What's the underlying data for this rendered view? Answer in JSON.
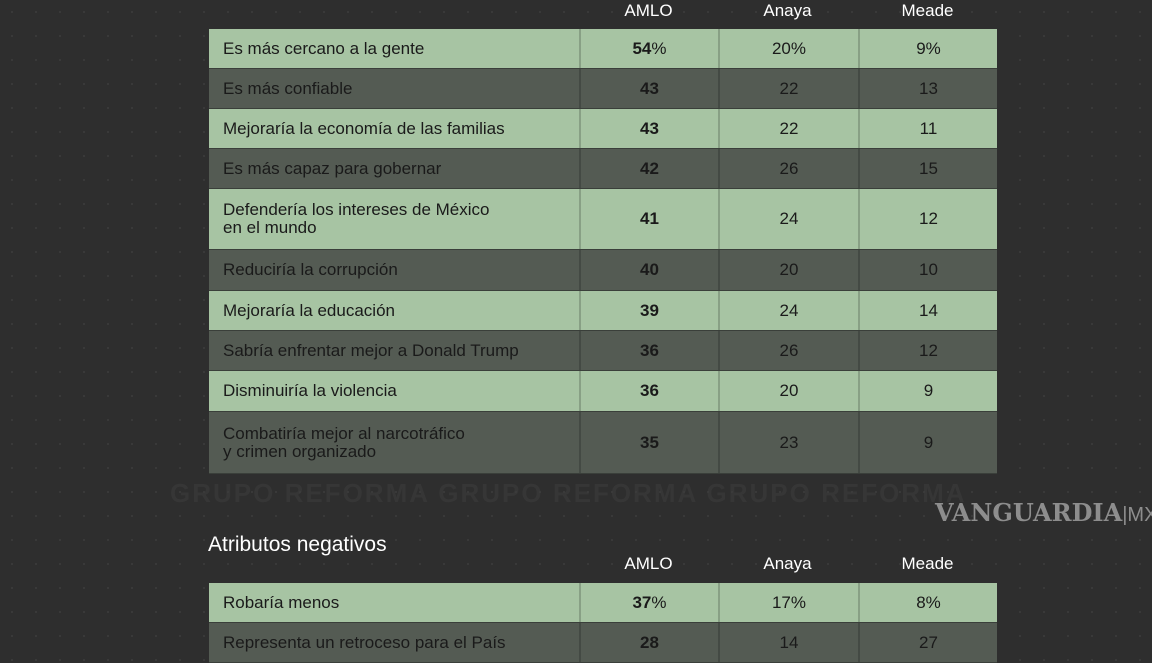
{
  "columns": [
    "AMLO",
    "Anaya",
    "Meade"
  ],
  "positive": {
    "rows": [
      {
        "label": "Es más cercano a la gente",
        "values": [
          "54",
          "20",
          "9"
        ],
        "pct": true
      },
      {
        "label": "Es más confiable",
        "values": [
          "43",
          "22",
          "13"
        ]
      },
      {
        "label": "Mejoraría la economía de las familias",
        "values": [
          "43",
          "22",
          "11"
        ]
      },
      {
        "label": "Es más capaz para gobernar",
        "values": [
          "42",
          "26",
          "15"
        ]
      },
      {
        "label": "Defendería los intereses de México\nen el mundo",
        "values": [
          "41",
          "24",
          "12"
        ]
      },
      {
        "label": "Reduciría la corrupción",
        "values": [
          "40",
          "20",
          "10"
        ]
      },
      {
        "label": "Mejoraría la educación",
        "values": [
          "39",
          "24",
          "14"
        ]
      },
      {
        "label": "Sabría enfrentar mejor a Donald Trump",
        "values": [
          "36",
          "26",
          "12"
        ]
      },
      {
        "label": "Disminuiría la violencia",
        "values": [
          "36",
          "20",
          "9"
        ]
      },
      {
        "label": "Combatiría mejor al narcotráfico\ny crimen organizado",
        "values": [
          "35",
          "23",
          "9"
        ]
      }
    ]
  },
  "negative": {
    "title": "Atributos negativos",
    "rows": [
      {
        "label": "Robaría menos",
        "values": [
          "37",
          "17",
          "8"
        ],
        "pct": true
      },
      {
        "label": "Representa un retroceso para el País",
        "values": [
          "28",
          "14",
          "27"
        ]
      }
    ]
  },
  "watermark": "GRUPO REFORMA   GRUPO REFORMA   GRUPO REFORMA",
  "logo": {
    "main": "VANGUARDIA",
    "suffix": "MX"
  },
  "colors": {
    "light_row": "#a7c4a3",
    "dark_row": "#545b53",
    "background": "#2e2e2e"
  }
}
